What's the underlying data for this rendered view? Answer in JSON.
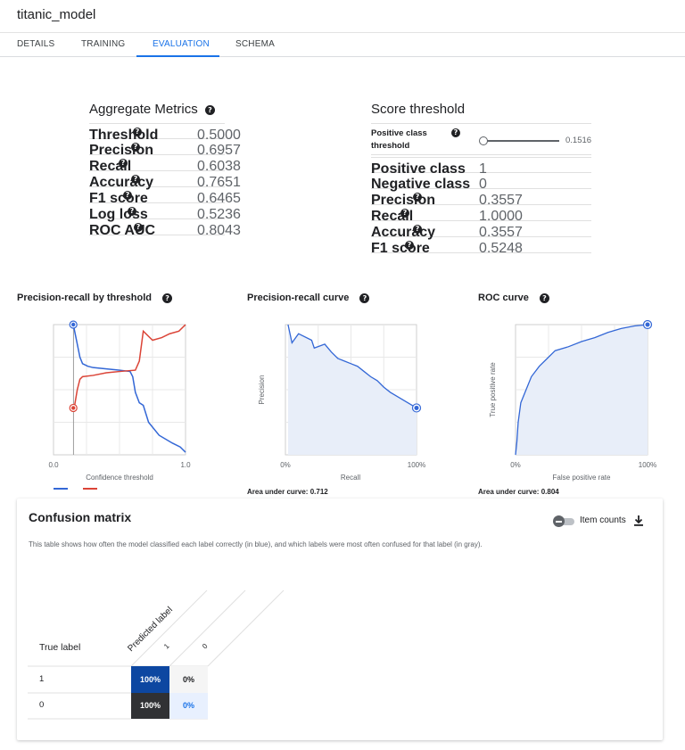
{
  "app": {
    "title": "titanic_model"
  },
  "tabs": [
    {
      "label": "DETAILS"
    },
    {
      "label": "TRAINING"
    },
    {
      "label": "EVALUATION"
    },
    {
      "label": "SCHEMA"
    }
  ],
  "aggregate": {
    "title": "Aggregate Metrics",
    "rows": [
      {
        "label": "Threshold",
        "value": "0.5000"
      },
      {
        "label": "Precision",
        "value": "0.6957"
      },
      {
        "label": "Recall",
        "value": "0.6038"
      },
      {
        "label": "Accuracy",
        "value": "0.7651"
      },
      {
        "label": "F1 score",
        "value": "0.6465"
      },
      {
        "label": "Log loss",
        "value": "0.5236"
      },
      {
        "label": "ROC AUC",
        "value": "0.8043"
      }
    ]
  },
  "score": {
    "title": "Score threshold",
    "slider_label_line1": "Positive class",
    "slider_label_line2": "threshold",
    "slider_value": "0.1516",
    "slider_fraction": 0.0,
    "rows": [
      {
        "label": "Positive class",
        "value": "1"
      },
      {
        "label": "Negative class",
        "value": "0"
      },
      {
        "label": "Precision",
        "value": "0.3557"
      },
      {
        "label": "Recall",
        "value": "1.0000"
      },
      {
        "label": "Accuracy",
        "value": "0.3557"
      },
      {
        "label": "F1 score",
        "value": "0.5248"
      }
    ]
  },
  "charts": {
    "prt": {
      "title": "Precision-recall by threshold",
      "xlabel": "Confidence threshold",
      "xmin_label": "0.0",
      "xmax_label": "1.0"
    },
    "prc": {
      "title": "Precision-recall curve",
      "xlabel": "Recall",
      "ylabel": "Precision",
      "xmin_label": "0%",
      "xmax_label": "100%",
      "auc": "Area under curve: 0.712"
    },
    "roc": {
      "title": "ROC curve",
      "xlabel": "False positive rate",
      "ylabel": "True positive rate",
      "xmin_label": "0%",
      "xmax_label": "100%",
      "auc": "Area under curve: 0.804"
    }
  },
  "chart_data": [
    {
      "type": "line",
      "title": "Precision-recall by threshold",
      "xlabel": "Confidence threshold",
      "xlim": [
        0,
        1
      ],
      "ylim": [
        0,
        1
      ],
      "threshold_marker": 0.1516,
      "series": [
        {
          "color": "#3367d6",
          "points": [
            [
              0.15,
              1.0
            ],
            [
              0.16,
              0.95
            ],
            [
              0.18,
              0.85
            ],
            [
              0.2,
              0.75
            ],
            [
              0.22,
              0.7
            ],
            [
              0.26,
              0.68
            ],
            [
              0.3,
              0.67
            ],
            [
              0.4,
              0.66
            ],
            [
              0.5,
              0.65
            ],
            [
              0.58,
              0.64
            ],
            [
              0.6,
              0.6
            ],
            [
              0.62,
              0.48
            ],
            [
              0.65,
              0.4
            ],
            [
              0.68,
              0.38
            ],
            [
              0.72,
              0.25
            ],
            [
              0.8,
              0.15
            ],
            [
              0.9,
              0.09
            ],
            [
              0.96,
              0.06
            ],
            [
              1.0,
              0.02
            ]
          ]
        },
        {
          "color": "#db4437",
          "points": [
            [
              0.15,
              0.36
            ],
            [
              0.16,
              0.38
            ],
            [
              0.18,
              0.5
            ],
            [
              0.2,
              0.58
            ],
            [
              0.22,
              0.6
            ],
            [
              0.3,
              0.61
            ],
            [
              0.4,
              0.63
            ],
            [
              0.5,
              0.64
            ],
            [
              0.62,
              0.65
            ],
            [
              0.65,
              0.72
            ],
            [
              0.68,
              0.95
            ],
            [
              0.75,
              0.88
            ],
            [
              0.82,
              0.9
            ],
            [
              0.88,
              0.93
            ],
            [
              0.95,
              0.95
            ],
            [
              1.0,
              1.0
            ]
          ]
        }
      ]
    },
    {
      "type": "area",
      "title": "Precision-recall curve",
      "xlabel": "Recall",
      "ylabel": "Precision",
      "xlim": [
        0,
        1
      ],
      "ylim": [
        0,
        1
      ],
      "points": [
        [
          0.02,
          1.0
        ],
        [
          0.05,
          0.86
        ],
        [
          0.1,
          0.93
        ],
        [
          0.2,
          0.88
        ],
        [
          0.22,
          0.82
        ],
        [
          0.3,
          0.85
        ],
        [
          0.35,
          0.79
        ],
        [
          0.4,
          0.74
        ],
        [
          0.45,
          0.72
        ],
        [
          0.5,
          0.7
        ],
        [
          0.55,
          0.68
        ],
        [
          0.6,
          0.64
        ],
        [
          0.65,
          0.6
        ],
        [
          0.7,
          0.57
        ],
        [
          0.75,
          0.52
        ],
        [
          0.8,
          0.48
        ],
        [
          0.85,
          0.45
        ],
        [
          0.9,
          0.42
        ],
        [
          0.95,
          0.39
        ],
        [
          1.0,
          0.36
        ]
      ],
      "marker": [
        1.0,
        0.36
      ]
    },
    {
      "type": "area",
      "title": "ROC curve",
      "xlabel": "False positive rate",
      "ylabel": "True positive rate",
      "xlim": [
        0,
        1
      ],
      "ylim": [
        0,
        1
      ],
      "points": [
        [
          0,
          0
        ],
        [
          0.01,
          0.1
        ],
        [
          0.02,
          0.25
        ],
        [
          0.04,
          0.4
        ],
        [
          0.08,
          0.5
        ],
        [
          0.12,
          0.6
        ],
        [
          0.18,
          0.68
        ],
        [
          0.25,
          0.75
        ],
        [
          0.3,
          0.8
        ],
        [
          0.4,
          0.83
        ],
        [
          0.5,
          0.87
        ],
        [
          0.6,
          0.9
        ],
        [
          0.7,
          0.94
        ],
        [
          0.8,
          0.97
        ],
        [
          0.9,
          0.99
        ],
        [
          1.0,
          1.0
        ]
      ],
      "marker": [
        1.0,
        1.0
      ]
    }
  ],
  "confusion": {
    "title": "Confusion matrix",
    "description": "This table shows how often the model classified each label correctly (in blue), and which labels were most often confused for that label (in gray).",
    "toggle_label": "Item counts",
    "true_label": "True label",
    "predicted_label": "Predicted label",
    "col_labels": [
      "1",
      "0"
    ],
    "rows": [
      {
        "label": "1",
        "cells": [
          "100%",
          "0%"
        ]
      },
      {
        "label": "0",
        "cells": [
          "100%",
          "0%"
        ]
      }
    ]
  }
}
